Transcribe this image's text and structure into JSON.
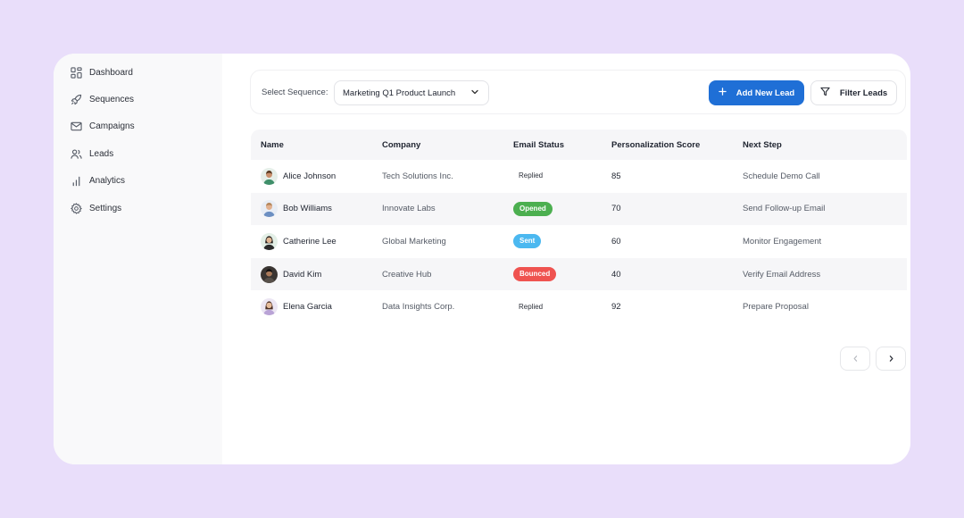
{
  "sidebar": {
    "items": [
      {
        "label": "Dashboard",
        "icon": "grid-icon"
      },
      {
        "label": "Sequences",
        "icon": "rocket-icon"
      },
      {
        "label": "Campaigns",
        "icon": "mail-icon"
      },
      {
        "label": "Leads",
        "icon": "users-icon"
      },
      {
        "label": "Analytics",
        "icon": "bar-chart-icon"
      },
      {
        "label": "Settings",
        "icon": "gear-icon"
      }
    ]
  },
  "toolbar": {
    "sequence_label": "Select Sequence:",
    "sequence_value": "Marketing Q1 Product Launch",
    "add_label": "Add New Lead",
    "filter_label": "Filter Leads"
  },
  "table": {
    "headers": {
      "name": "Name",
      "company": "Company",
      "status": "Email Status",
      "score": "Personalization Score",
      "next": "Next Step"
    },
    "rows": [
      {
        "name": "Alice Johnson",
        "company": "Tech Solutions Inc.",
        "status": "Replied",
        "score": "85",
        "next": "Schedule Demo Call"
      },
      {
        "name": "Bob Williams",
        "company": "Innovate Labs",
        "status": "Opened",
        "score": "70",
        "next": "Send Follow-up Email"
      },
      {
        "name": "Catherine Lee",
        "company": "Global Marketing",
        "status": "Sent",
        "score": "60",
        "next": "Monitor Engagement"
      },
      {
        "name": "David Kim",
        "company": "Creative Hub",
        "status": "Bounced",
        "score": "40",
        "next": "Verify Email Address"
      },
      {
        "name": "Elena Garcia",
        "company": "Data Insights Corp.",
        "status": "Replied",
        "score": "92",
        "next": "Prepare Proposal"
      }
    ]
  },
  "status_colors": {
    "Opened": "#4caf50",
    "Sent": "#4bb8f0",
    "Bounced": "#ef5350"
  },
  "colors": {
    "background": "#e9defa",
    "accent": "#1f6fd6"
  }
}
